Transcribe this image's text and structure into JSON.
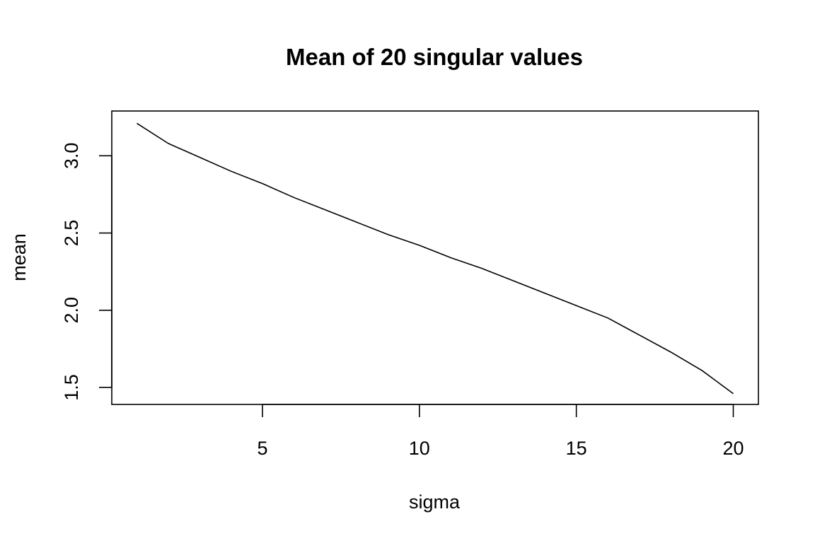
{
  "chart_data": {
    "type": "line",
    "title": "Mean of 20 singular values",
    "xlabel": "sigma",
    "ylabel": "mean",
    "xlim": [
      0.2,
      20.8
    ],
    "ylim": [
      1.39,
      3.29
    ],
    "x_ticks": [
      5,
      10,
      15,
      20
    ],
    "y_ticks": [
      1.5,
      2.0,
      2.5,
      3.0
    ],
    "x_tick_labels": [
      "5",
      "10",
      "15",
      "20"
    ],
    "y_tick_labels": [
      "1.5",
      "2.0",
      "2.5",
      "3.0"
    ],
    "grid": false,
    "legend": "none",
    "line_color": "#000000",
    "x": [
      1,
      2,
      3,
      4,
      5,
      6,
      7,
      8,
      9,
      10,
      11,
      12,
      13,
      14,
      15,
      16,
      17,
      18,
      19,
      20
    ],
    "y": [
      3.21,
      3.08,
      2.99,
      2.9,
      2.82,
      2.73,
      2.65,
      2.57,
      2.49,
      2.42,
      2.34,
      2.27,
      2.19,
      2.11,
      2.03,
      1.95,
      1.84,
      1.73,
      1.61,
      1.46
    ]
  }
}
